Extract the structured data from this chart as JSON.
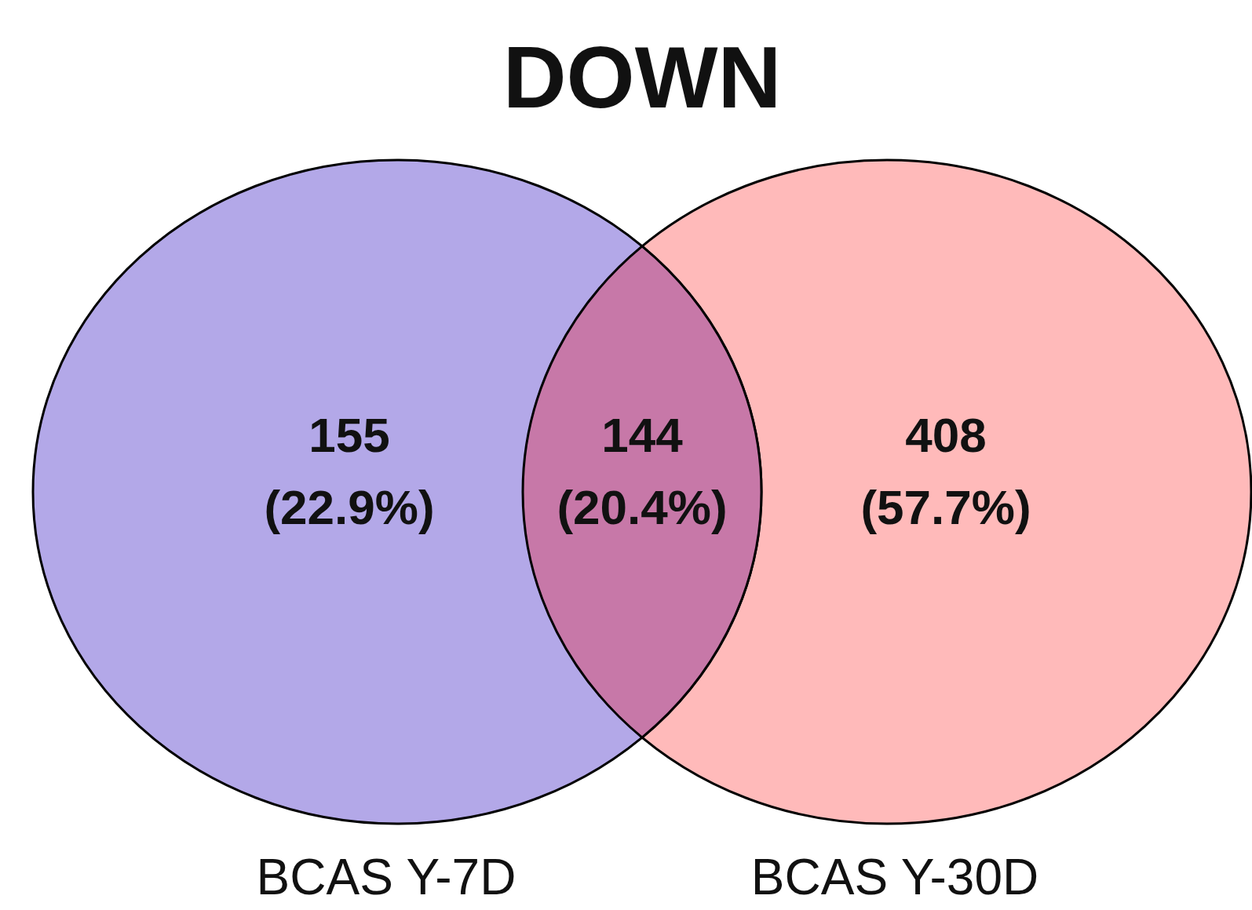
{
  "chart_data": {
    "type": "other",
    "title": "DOWN",
    "categories": [
      "BCAS Y-7D",
      null,
      "BCAS Y-30D"
    ],
    "values": [
      155,
      144,
      408
    ],
    "data_labels": true,
    "annotations": [
      "(22.9%)",
      "(20.4%)",
      "(57.7%)"
    ],
    "colors": [
      "#b3a8e8",
      "#c778a8",
      "#ffbaba"
    ]
  }
}
